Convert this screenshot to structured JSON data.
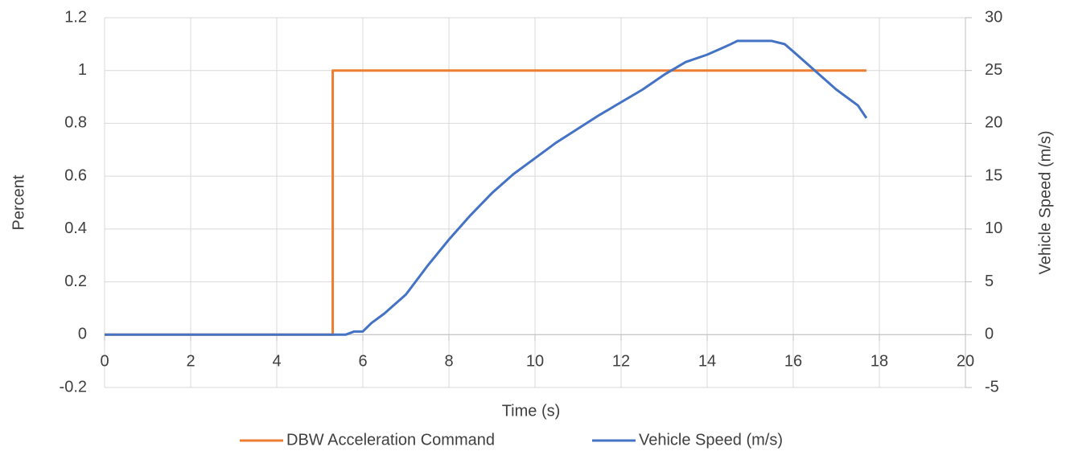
{
  "chart_data": {
    "type": "line",
    "xlabel": "Time (s)",
    "ylabel": "Percent",
    "y2label": "Vehicle Speed (m/s)",
    "xlim": [
      0,
      20
    ],
    "xticks": [
      0,
      2,
      4,
      6,
      8,
      10,
      12,
      14,
      16,
      18,
      20
    ],
    "ylim": [
      -0.2,
      1.2
    ],
    "yticks": [
      -0.2,
      0,
      0.2,
      0.4,
      0.6,
      0.8,
      1,
      1.2
    ],
    "y2lim": [
      -5,
      30
    ],
    "y2ticks": [
      -5,
      0,
      5,
      10,
      15,
      20,
      25,
      30
    ],
    "grid": true,
    "legend": "bottom",
    "series": [
      {
        "name": "DBW Acceleration Command",
        "color": "#ed7d31",
        "axis": "y",
        "x": [
          0,
          5.3,
          5.3,
          17.7
        ],
        "values": [
          0,
          0,
          1,
          1
        ]
      },
      {
        "name": "Vehicle Speed (m/s)",
        "color": "#4472c4",
        "axis": "y2",
        "x": [
          0,
          5.6,
          5.8,
          6.0,
          6.2,
          6.5,
          7.0,
          7.5,
          8.0,
          8.5,
          9.0,
          9.5,
          10.0,
          10.5,
          11.0,
          11.5,
          12.0,
          12.5,
          13.0,
          13.5,
          14.0,
          14.5,
          14.7,
          15.0,
          15.5,
          15.8,
          16.0,
          16.5,
          17.0,
          17.5,
          17.7
        ],
        "values": [
          0,
          0,
          0.3,
          0.3,
          1.1,
          2.0,
          3.8,
          6.5,
          9.0,
          11.3,
          13.4,
          15.2,
          16.7,
          18.2,
          19.5,
          20.8,
          22.0,
          23.2,
          24.6,
          25.8,
          26.5,
          27.4,
          27.8,
          27.8,
          27.8,
          27.5,
          26.8,
          25.0,
          23.2,
          21.7,
          20.5
        ]
      }
    ]
  }
}
